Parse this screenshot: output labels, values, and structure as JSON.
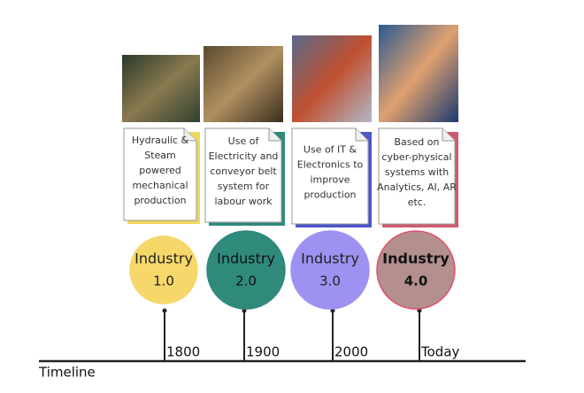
{
  "timeline_label": "Timeline",
  "stages": [
    {
      "label": [
        "Industry",
        "1.0"
      ],
      "year": "1800",
      "description": [
        "Hydraulic &",
        "Steam",
        "powered",
        "mechanical",
        "production"
      ]
    },
    {
      "label": [
        "Industry",
        "2.0"
      ],
      "year": "1900",
      "description": [
        "Use of",
        "Electricity and",
        "conveyor belt",
        "system for",
        "labour work"
      ]
    },
    {
      "label": [
        "Industry",
        "3.0"
      ],
      "year": "2000",
      "description": [
        "Use of IT &",
        "Electronics to",
        "improve",
        "production"
      ]
    },
    {
      "label": [
        "Industry",
        "4.0"
      ],
      "year": "Today",
      "description": [
        "Based on",
        "cyber-physical",
        "systems with",
        "Analytics, AI, AR",
        "etc."
      ]
    }
  ]
}
